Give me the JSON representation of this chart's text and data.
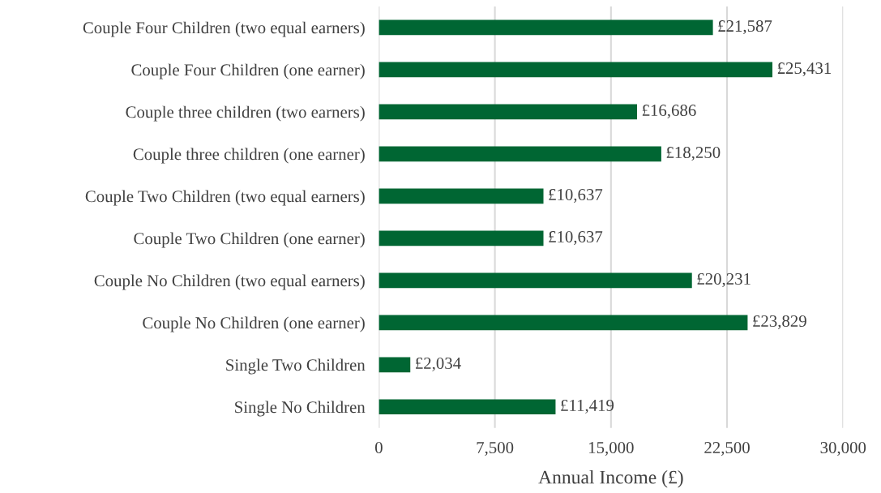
{
  "chart_data": {
    "type": "bar",
    "orientation": "horizontal",
    "xlabel": "Annual Income (£)",
    "categories": [
      "Couple Four Children (two equal earners)",
      "Couple Four Children (one earner)",
      "Couple three children (two earners)",
      "Couple three children (one earner)",
      "Couple Two Children (two equal earners)",
      "Couple Two Children (one earner)",
      "Couple No Children (two equal earners)",
      "Couple No Children (one earner)",
      "Single Two Children",
      "Single No Children"
    ],
    "values": [
      21587,
      25431,
      16686,
      18250,
      10637,
      10637,
      20231,
      23829,
      2034,
      11419
    ],
    "value_labels": [
      "£21,587",
      "£25,431",
      "£16,686",
      "£18,250",
      "£10,637",
      "£10,637",
      "£20,231",
      "£23,829",
      "£2,034",
      "£11,419"
    ],
    "color": "#006633",
    "xlim": [
      0,
      30000
    ],
    "xticks": [
      0,
      {
        "value": 7500,
        "label": "7,500"
      },
      {
        "value": 15000,
        "label": "15,000"
      },
      {
        "value": 22500,
        "label": "22,500"
      },
      {
        "value": 30000,
        "label": "30,000"
      }
    ],
    "grid": "x",
    "legend": false
  }
}
